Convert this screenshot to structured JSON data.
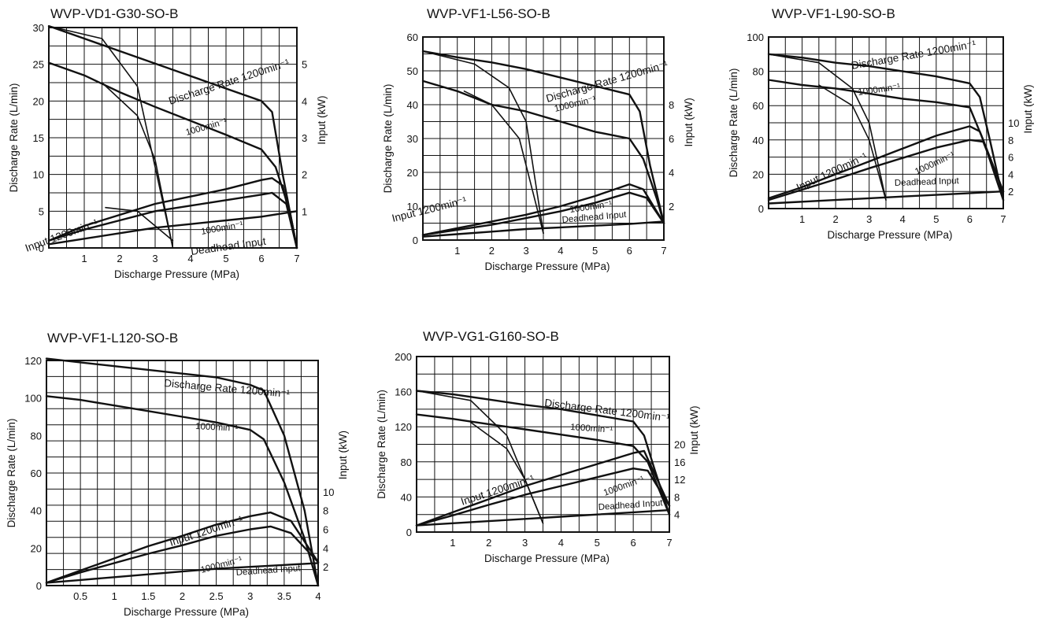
{
  "chart_data": [
    {
      "type": "line",
      "title": "WVP-VD1-G30-SO-B",
      "xlabel": "Discharge Pressure (MPa)",
      "ylabel": "Discharge Rate (L/min)",
      "y2label": "Input (kW)",
      "xlim": [
        0,
        7
      ],
      "ylim": [
        0,
        30
      ],
      "y2lim": [
        0,
        6
      ],
      "x_ticks": [
        "1",
        "2",
        "3",
        "4",
        "5",
        "6",
        "7"
      ],
      "y_ticks": [
        "0",
        "5",
        "10",
        "15",
        "20",
        "25",
        "30"
      ],
      "y2_ticks": [
        "1",
        "2",
        "3",
        "4",
        "5"
      ],
      "annotations": [
        "Discharge Rate 1200min⁻¹",
        "1000min⁻¹",
        "Input 1200min⁻¹",
        "1000min⁻¹",
        "Deadhead Input"
      ],
      "series": [
        {
          "name": "Discharge Rate 1200min⁻¹",
          "axis": "left",
          "x": [
            0,
            1,
            2,
            3,
            4,
            5,
            6,
            6.3,
            6.6,
            7
          ],
          "y": [
            30.2,
            28.5,
            26.8,
            25.1,
            23.4,
            21.7,
            20,
            18.5,
            10,
            0
          ]
        },
        {
          "name": "1000min⁻¹",
          "axis": "left",
          "x": [
            0,
            1,
            2,
            3,
            4,
            5,
            6,
            6.4,
            6.8,
            7
          ],
          "y": [
            25.2,
            23.5,
            21.2,
            19.2,
            17.3,
            15.4,
            13.4,
            11,
            5,
            0
          ]
        },
        {
          "name": "Input 1200min⁻¹",
          "axis": "right",
          "x": [
            0,
            1,
            2,
            3,
            4,
            5,
            6,
            6.3,
            6.6,
            7
          ],
          "y": [
            0.2,
            0.6,
            0.9,
            1.2,
            1.4,
            1.6,
            1.85,
            1.9,
            1.7,
            0
          ]
        },
        {
          "name": "1000min⁻¹",
          "axis": "right",
          "x": [
            0,
            1,
            2,
            3,
            4,
            5,
            6,
            6.3,
            6.7,
            7
          ],
          "y": [
            0.2,
            0.5,
            0.75,
            1.0,
            1.15,
            1.3,
            1.45,
            1.5,
            1.2,
            0
          ]
        },
        {
          "name": "Deadhead Input",
          "axis": "right",
          "x": [
            0,
            1,
            2,
            3,
            4,
            5,
            6,
            7
          ],
          "y": [
            0.1,
            0.25,
            0.4,
            0.55,
            0.65,
            0.75,
            0.85,
            1.0
          ]
        },
        {
          "axis": "left",
          "x": [
            0,
            1.5,
            2.5,
            3.5
          ],
          "y": [
            30.2,
            28.5,
            22,
            0
          ]
        },
        {
          "axis": "left",
          "x": [
            1.5,
            2.5,
            3,
            3.5
          ],
          "y": [
            22.5,
            18,
            12,
            0
          ]
        },
        {
          "axis": "right",
          "x": [
            1.6,
            2.5,
            3.5
          ],
          "y": [
            1.1,
            1.0,
            0.2
          ]
        }
      ]
    },
    {
      "type": "line",
      "title": "WVP-VF1-L56-SO-B",
      "xlabel": "Discharge Pressure (MPa)",
      "ylabel": "Discharge Rate (L/min)",
      "y2label": "Input (kW)",
      "xlim": [
        0,
        7
      ],
      "ylim": [
        0,
        60
      ],
      "y2lim": [
        0,
        12
      ],
      "x_ticks": [
        "1",
        "2",
        "3",
        "4",
        "5",
        "6",
        "7"
      ],
      "y_ticks": [
        "0",
        "10",
        "20",
        "30",
        "40",
        "50",
        "60"
      ],
      "y2_ticks": [
        "2",
        "4",
        "6",
        "8"
      ],
      "annotations": [
        "Discharge Rate 1200min⁻¹",
        "1000min⁻¹",
        "Input 1200min⁻¹",
        "1000min⁻¹",
        "Deadhead Input"
      ],
      "series": [
        {
          "name": "Discharge Rate 1200min⁻¹",
          "axis": "left",
          "x": [
            0,
            1,
            2,
            3,
            4,
            5,
            6,
            6.3,
            6.6,
            7
          ],
          "y": [
            55.8,
            54,
            52.5,
            50.5,
            48,
            45.5,
            43,
            38,
            22,
            5
          ]
        },
        {
          "name": "1000min⁻¹",
          "axis": "left",
          "x": [
            0,
            1,
            2,
            3,
            4,
            5,
            6,
            6.4,
            6.8,
            7
          ],
          "y": [
            47,
            44,
            40,
            38,
            35,
            32,
            30,
            24,
            12,
            5
          ]
        },
        {
          "name": "Input 1200min⁻¹",
          "axis": "right",
          "x": [
            0,
            1,
            2,
            3,
            4,
            5,
            6,
            6.4,
            7
          ],
          "y": [
            0.3,
            0.7,
            1.1,
            1.5,
            2.0,
            2.6,
            3.3,
            3.0,
            1.0
          ]
        },
        {
          "name": "1000min⁻¹",
          "axis": "right",
          "x": [
            0,
            1,
            2,
            3,
            4,
            5,
            6,
            6.5,
            7
          ],
          "y": [
            0.3,
            0.6,
            0.9,
            1.3,
            1.7,
            2.2,
            2.8,
            2.5,
            1.0
          ]
        },
        {
          "name": "Deadhead Input",
          "axis": "right",
          "x": [
            0,
            1,
            2,
            3,
            4,
            5,
            6,
            7
          ],
          "y": [
            0.2,
            0.35,
            0.5,
            0.65,
            0.75,
            0.85,
            0.95,
            1.1
          ]
        },
        {
          "axis": "left",
          "x": [
            0,
            1.5,
            2.5,
            3,
            3.5
          ],
          "y": [
            55.8,
            52,
            45,
            35,
            2
          ]
        },
        {
          "axis": "left",
          "x": [
            1.2,
            2,
            2.8,
            3.5
          ],
          "y": [
            44,
            40,
            30,
            2
          ]
        }
      ]
    },
    {
      "type": "line",
      "title": "WVP-VF1-L90-SO-B",
      "xlabel": "Discharge Pressure (MPa)",
      "ylabel": "Discharge Rate (L/min)",
      "y2label": "Input (kW)",
      "xlim": [
        0,
        7
      ],
      "ylim": [
        0,
        100
      ],
      "y2lim": [
        0,
        20
      ],
      "x_ticks": [
        "1",
        "2",
        "3",
        "4",
        "5",
        "6",
        "7"
      ],
      "y_ticks": [
        "0",
        "20",
        "40",
        "60",
        "80",
        "100"
      ],
      "y2_ticks": [
        "2",
        "4",
        "6",
        "8",
        "10"
      ],
      "annotations": [
        "Discharge Rate 1200min⁻¹",
        "1000min⁻¹",
        "Input 1200min⁻¹",
        "1000min⁻¹",
        "Deadhead Input"
      ],
      "series": [
        {
          "name": "Discharge Rate 1200min⁻¹",
          "axis": "left",
          "x": [
            0,
            1,
            2,
            3,
            4,
            5,
            6,
            6.3,
            6.6,
            7
          ],
          "y": [
            90,
            88,
            85,
            83,
            80,
            77,
            73,
            65,
            40,
            5
          ]
        },
        {
          "name": "1000min⁻¹",
          "axis": "left",
          "x": [
            0,
            1,
            2,
            3,
            4,
            5,
            6,
            6.4,
            7
          ],
          "y": [
            75,
            72,
            70,
            67,
            64,
            62,
            59,
            40,
            5
          ]
        },
        {
          "name": "Input 1200min⁻¹",
          "axis": "right",
          "x": [
            0,
            1,
            2,
            3,
            4,
            5,
            6,
            6.3,
            7
          ],
          "y": [
            1.2,
            2.5,
            4.0,
            5.5,
            7.0,
            8.5,
            9.6,
            9.0,
            2.0
          ]
        },
        {
          "name": "1000min⁻¹",
          "axis": "right",
          "x": [
            0,
            1,
            2,
            3,
            4,
            5,
            6,
            6.4,
            7
          ],
          "y": [
            1.0,
            2.2,
            3.4,
            4.7,
            5.9,
            7.1,
            8.0,
            7.8,
            2.0
          ]
        },
        {
          "name": "Deadhead Input",
          "axis": "right",
          "x": [
            0,
            1,
            2,
            3,
            4,
            5,
            6,
            7
          ],
          "y": [
            0.6,
            0.8,
            1.0,
            1.2,
            1.4,
            1.6,
            1.8,
            2.0
          ]
        },
        {
          "axis": "left",
          "x": [
            0,
            1.5,
            2.5,
            3,
            3.5
          ],
          "y": [
            90,
            85,
            70,
            50,
            5
          ]
        },
        {
          "axis": "left",
          "x": [
            1.5,
            2.5,
            3,
            3.5
          ],
          "y": [
            72,
            60,
            40,
            5
          ]
        }
      ]
    },
    {
      "type": "line",
      "title": "WVP-VF1-L120-SO-B",
      "xlabel": "Discharge Pressure (MPa)",
      "ylabel": "Discharge Rate (L/min)",
      "y2label": "Input (kW)",
      "xlim": [
        0,
        4
      ],
      "ylim": [
        0,
        120
      ],
      "y2lim": [
        0,
        24
      ],
      "x_ticks": [
        "0.5",
        "1",
        "1.5",
        "2",
        "2.5",
        "3",
        "3.5",
        "4"
      ],
      "y_ticks": [
        "0",
        "20",
        "40",
        "60",
        "80",
        "100",
        "120"
      ],
      "y2_ticks": [
        "2",
        "4",
        "6",
        "8",
        "10"
      ],
      "annotations": [
        "Discharge Rate 1200min⁻¹",
        "1000min⁻¹",
        "Input 1200min⁻¹",
        "1000min⁻¹",
        "Deadhead Input"
      ],
      "series": [
        {
          "name": "Discharge Rate 1200min⁻¹",
          "axis": "left",
          "x": [
            0,
            0.5,
            1,
            1.5,
            2,
            2.5,
            3,
            3.2,
            3.5,
            3.8,
            4
          ],
          "y": [
            121,
            119,
            117,
            115,
            113,
            111,
            107,
            104,
            80,
            40,
            0
          ]
        },
        {
          "name": "1000min⁻¹",
          "axis": "left",
          "x": [
            0,
            0.5,
            1,
            1.5,
            2,
            2.5,
            3,
            3.2,
            3.5,
            3.8,
            4
          ],
          "y": [
            101,
            99,
            96,
            93,
            90,
            87,
            83,
            78,
            55,
            25,
            0
          ]
        },
        {
          "name": "Input 1200min⁻¹",
          "axis": "right",
          "x": [
            0,
            0.5,
            1,
            1.5,
            2,
            2.5,
            3,
            3.3,
            3.6,
            4
          ],
          "y": [
            0.3,
            1.6,
            2.9,
            4.2,
            5.3,
            6.5,
            7.4,
            7.8,
            6.9,
            2.5
          ]
        },
        {
          "name": "1000min⁻¹",
          "axis": "right",
          "x": [
            0,
            0.5,
            1,
            1.5,
            2,
            2.5,
            3,
            3.3,
            3.6,
            4
          ],
          "y": [
            0.3,
            1.4,
            2.4,
            3.4,
            4.3,
            5.3,
            6.0,
            6.3,
            5.6,
            2.5
          ]
        },
        {
          "name": "Deadhead Input",
          "axis": "right",
          "x": [
            0,
            0.5,
            1,
            1.5,
            2,
            2.5,
            3,
            3.5,
            4
          ],
          "y": [
            0.3,
            0.6,
            0.9,
            1.2,
            1.5,
            1.8,
            2.0,
            2.2,
            2.4
          ]
        }
      ]
    },
    {
      "type": "line",
      "title": "WVP-VG1-G160-SO-B",
      "xlabel": "Discharge Pressure (MPa)",
      "ylabel": "Discharge Rate (L/min)",
      "y2label": "Input (kW)",
      "xlim": [
        0,
        7
      ],
      "ylim": [
        0,
        200
      ],
      "y2lim": [
        0,
        40
      ],
      "x_ticks": [
        "1",
        "2",
        "3",
        "4",
        "5",
        "6",
        "7"
      ],
      "y_ticks": [
        "0",
        "40",
        "80",
        "120",
        "160",
        "200"
      ],
      "y2_ticks": [
        "4",
        "8",
        "12",
        "16",
        "20"
      ],
      "annotations": [
        "Discharge Rate 1200min⁻¹",
        "1000min⁻¹",
        "Input 1200min⁻¹",
        "1000min⁻¹",
        "Deadhead Input"
      ],
      "series": [
        {
          "name": "Discharge Rate 1200min⁻¹",
          "axis": "left",
          "x": [
            0,
            1,
            2,
            3,
            4,
            5,
            6,
            6.3,
            6.6,
            7
          ],
          "y": [
            161,
            157,
            151,
            145,
            140,
            133,
            126,
            110,
            70,
            20
          ]
        },
        {
          "name": "1000min⁻¹",
          "axis": "left",
          "x": [
            0,
            1,
            2,
            3,
            4,
            5,
            6,
            6.4,
            6.8,
            7
          ],
          "y": [
            134,
            129,
            123,
            117,
            111,
            105,
            98,
            80,
            40,
            20
          ]
        },
        {
          "name": "Input 1200min⁻¹",
          "axis": "right",
          "x": [
            0,
            1,
            2,
            3,
            4,
            5,
            6,
            6.3,
            7
          ],
          "y": [
            1.5,
            4.5,
            7.5,
            10.5,
            13.0,
            15.5,
            18.0,
            18.5,
            6.0
          ]
        },
        {
          "name": "1000min⁻¹",
          "axis": "right",
          "x": [
            0,
            1,
            2,
            3,
            4,
            5,
            6,
            6.4,
            7
          ],
          "y": [
            1.5,
            3.8,
            6.2,
            8.5,
            10.5,
            12.5,
            14.5,
            14.0,
            6.0
          ]
        },
        {
          "name": "Deadhead Input",
          "axis": "right",
          "x": [
            0,
            1,
            2,
            3,
            4,
            5,
            6,
            7
          ],
          "y": [
            1.5,
            2.0,
            2.5,
            3.0,
            3.5,
            4.0,
            4.5,
            5.0
          ]
        },
        {
          "axis": "left",
          "x": [
            0,
            1.5,
            2.5,
            3,
            3.5
          ],
          "y": [
            161,
            150,
            110,
            60,
            10
          ]
        },
        {
          "axis": "left",
          "x": [
            1.5,
            2.5,
            3,
            3.5
          ],
          "y": [
            125,
            95,
            60,
            10
          ]
        }
      ]
    }
  ]
}
